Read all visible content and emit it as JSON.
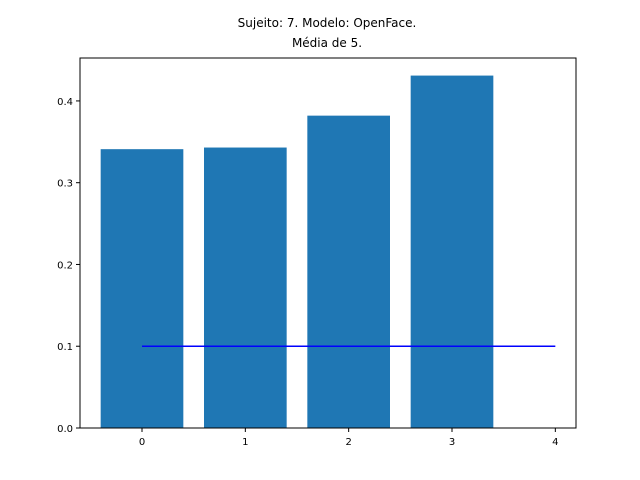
{
  "chart_data": {
    "type": "bar",
    "title_lines": [
      "Sujeito: 7. Modelo: OpenFace.",
      "Média de 5."
    ],
    "xlabel": "",
    "ylabel": "",
    "categories": [
      0,
      1,
      2,
      3
    ],
    "values": [
      0.341,
      0.343,
      0.382,
      0.431
    ],
    "bar_color": "#1f77b4",
    "bar_width": 0.8,
    "reference_line": {
      "x": [
        0,
        4
      ],
      "y": [
        0.1,
        0.1
      ],
      "color": "#0000ff"
    },
    "xlim": [
      -0.6,
      4.2
    ],
    "ylim": [
      0,
      0.4525
    ],
    "xticks": [
      "0",
      "1",
      "2",
      "3",
      "4"
    ],
    "yticks": [
      "0.0",
      "0.1",
      "0.2",
      "0.3",
      "0.4"
    ],
    "grid": false,
    "legend": "none"
  }
}
